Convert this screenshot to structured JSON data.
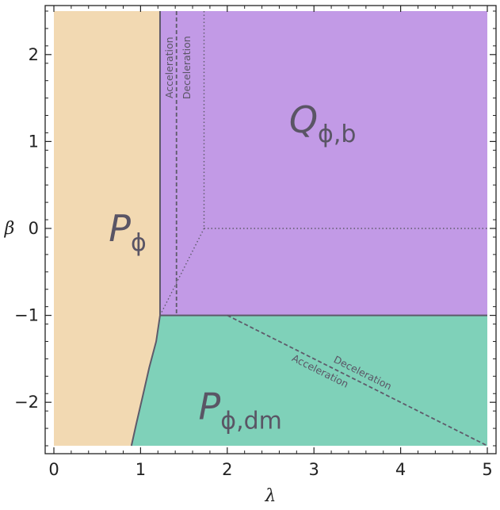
{
  "chart_data": {
    "type": "region",
    "title": "",
    "xlabel": "λ",
    "ylabel": "β",
    "xlim": [
      0,
      5
    ],
    "ylim": [
      -2.5,
      2.5
    ],
    "xticks": [
      0,
      1,
      2,
      3,
      4,
      5
    ],
    "yticks": [
      2,
      1,
      0,
      -1,
      -2
    ],
    "xtick_labels": [
      "0",
      "1",
      "2",
      "3",
      "4",
      "5"
    ],
    "ytick_labels": [
      "2",
      "1",
      "0",
      "−1",
      "−2"
    ],
    "colors": {
      "P_phi": "#f2d9b2",
      "Q_phi_b": "#c29ae6",
      "P_phi_dm": "#7fd1b9",
      "boundary": "#5e5a6a"
    },
    "regions": [
      {
        "id": "P_phi",
        "main": "P",
        "sub": "ϕ",
        "label_at": [
          0.85,
          0.0
        ]
      },
      {
        "id": "Q_phi_b",
        "main": "Q",
        "sub": "ϕ,b",
        "label_at": [
          3.1,
          1.25
        ]
      },
      {
        "id": "P_phi_dm",
        "main": "P",
        "sub": "ϕ,dm",
        "label_at": [
          2.15,
          -2.05
        ]
      }
    ],
    "boundaries": {
      "vertical_lambda": 1.2247,
      "beta_split": -1,
      "curve": [
        [
          0.8944,
          -2.5
        ],
        [
          0.95,
          -2.25
        ],
        [
          1.02,
          -1.95
        ],
        [
          1.1,
          -1.6
        ],
        [
          1.18,
          -1.3
        ],
        [
          1.2247,
          -1.0
        ]
      ]
    },
    "lines": {
      "dashed_vertical": {
        "x": 1.4142,
        "y_range": [
          -1,
          2.5
        ]
      },
      "dotted_vertical": {
        "x": 1.7321,
        "y_range": [
          0,
          2.5
        ]
      },
      "dotted_horizontal": {
        "y": 0,
        "x_range": [
          1.7321,
          5
        ]
      },
      "dotted_diagonal": {
        "points": [
          [
            1.2247,
            -1
          ],
          [
            1.7321,
            0
          ]
        ]
      },
      "dashed_diagonal": {
        "points": [
          [
            2.0,
            -1
          ],
          [
            5.0,
            -2.5
          ]
        ]
      }
    },
    "annotations": [
      {
        "text": "Acceleration",
        "x": 1.37,
        "y": 1.85,
        "rotate": -90
      },
      {
        "text": "Deceleration",
        "x": 1.57,
        "y": 1.85,
        "rotate": -90
      },
      {
        "text": "Deceleration",
        "x": 3.5,
        "y": -1.4,
        "rotate": "along-dashed",
        "offset": -11
      },
      {
        "text": "Acceleration",
        "x": 3.1,
        "y": -1.6,
        "rotate": "along-dashed",
        "offset": 11
      }
    ]
  }
}
